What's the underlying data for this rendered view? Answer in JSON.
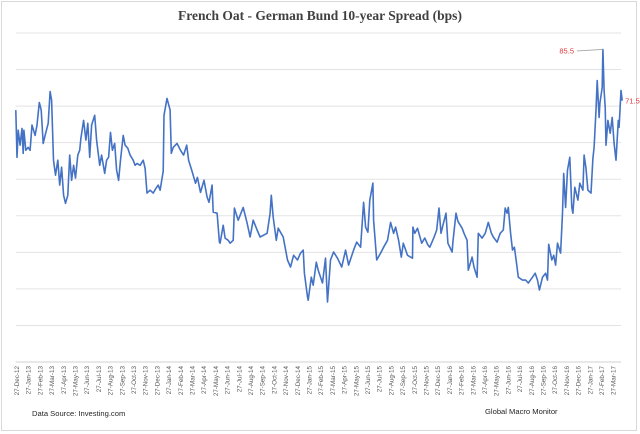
{
  "chart_data": {
    "type": "line",
    "title": "French Oat - German Bund 10-year Spread (bps)",
    "xlabel": "",
    "ylabel": "",
    "ylim": [
      0,
      90
    ],
    "y_gridlines": [
      0,
      10,
      20,
      30,
      40,
      50,
      60,
      70,
      80,
      90
    ],
    "y_tick_labels_shown": false,
    "grid": true,
    "legend": "none",
    "line_color": "#4472c4",
    "annotation_color": "#e0393e",
    "x_tick_labels": [
      "27-Dec-12",
      "27-Jan-13",
      "27-Feb-13",
      "27-Mar-13",
      "27-Apr-13",
      "27-May-13",
      "27-Jun-13",
      "27-Jul-13",
      "27-Aug-13",
      "27-Sep-13",
      "27-Oct-13",
      "27-Nov-13",
      "27-Dec-13",
      "27-Jan-14",
      "27-Feb-14",
      "27-Mar-14",
      "27-Apr-14",
      "27-May-14",
      "27-Jun-14",
      "27-Jul-14",
      "27-Aug-14",
      "27-Sep-14",
      "27-Oct-14",
      "27-Nov-14",
      "27-Dec-14",
      "27-Jan-15",
      "27-Feb-15",
      "27-Mar-15",
      "27-Apr-15",
      "27-May-15",
      "27-Jun-15",
      "27-Jul-15",
      "27-Aug-15",
      "27-Sep-15",
      "27-Oct-15",
      "27-Nov-15",
      "27-Dec-15",
      "27-Jan-16",
      "27-Feb-16",
      "27-Mar-16",
      "27-Apr-16",
      "27-May-16",
      "27-Jun-16",
      "27-Jul-16",
      "27-Aug-16",
      "27-Sep-16",
      "27-Oct-16",
      "27-Nov-16",
      "27-Dec-16",
      "27-Jan-17",
      "27-Feb-17",
      "27-Mar-17"
    ],
    "annotations": [
      {
        "label": "85.5",
        "date": "2017-02-27",
        "value": 85.5
      },
      {
        "label": "71.5",
        "date": "2017-04-18",
        "value": 71.5
      }
    ],
    "series": [
      {
        "points": [
          [
            "2012-12-24",
            68.9
          ],
          [
            "2012-12-27",
            56
          ],
          [
            "2012-12-30",
            63.4
          ],
          [
            "2013-01-04",
            59.3
          ],
          [
            "2013-01-09",
            63.9
          ],
          [
            "2013-01-12",
            57.1
          ],
          [
            "2013-01-14",
            63.4
          ],
          [
            "2013-01-19",
            57.9
          ],
          [
            "2013-01-25",
            58.7
          ],
          [
            "2013-01-30",
            57.9
          ],
          [
            "2013-02-04",
            64.8
          ],
          [
            "2013-02-12",
            62
          ],
          [
            "2013-02-17",
            64.8
          ],
          [
            "2013-02-23",
            71
          ],
          [
            "2013-02-28",
            68.9
          ],
          [
            "2013-03-05",
            59.8
          ],
          [
            "2013-03-10",
            62
          ],
          [
            "2013-03-18",
            65.3
          ],
          [
            "2013-03-23",
            74
          ],
          [
            "2013-03-27",
            71.6
          ],
          [
            "2013-04-01",
            55.2
          ],
          [
            "2013-04-06",
            51.1
          ],
          [
            "2013-04-12",
            55.2
          ],
          [
            "2013-04-17",
            48.4
          ],
          [
            "2013-04-22",
            53.3
          ],
          [
            "2013-04-27",
            45.6
          ],
          [
            "2013-05-02",
            43.4
          ],
          [
            "2013-05-08",
            45.6
          ],
          [
            "2013-05-13",
            56.6
          ],
          [
            "2013-05-18",
            49.7
          ],
          [
            "2013-05-23",
            53.8
          ],
          [
            "2013-05-28",
            50.3
          ],
          [
            "2013-06-03",
            56.6
          ],
          [
            "2013-06-08",
            57.9
          ],
          [
            "2013-06-11",
            61.2
          ],
          [
            "2013-06-18",
            66.1
          ],
          [
            "2013-06-24",
            60.7
          ],
          [
            "2013-06-29",
            65.3
          ],
          [
            "2013-07-04",
            56
          ],
          [
            "2013-07-09",
            64.8
          ],
          [
            "2013-07-17",
            67.5
          ],
          [
            "2013-07-22",
            60.7
          ],
          [
            "2013-07-30",
            53.8
          ],
          [
            "2013-08-04",
            56.6
          ],
          [
            "2013-08-12",
            51.6
          ],
          [
            "2013-08-17",
            55.2
          ],
          [
            "2013-08-22",
            56
          ],
          [
            "2013-08-27",
            62.8
          ],
          [
            "2013-09-01",
            57.9
          ],
          [
            "2013-09-07",
            59.8
          ],
          [
            "2013-09-12",
            52.5
          ],
          [
            "2013-09-17",
            49.7
          ],
          [
            "2013-09-22",
            55.2
          ],
          [
            "2013-09-29",
            62
          ],
          [
            "2013-10-04",
            59.3
          ],
          [
            "2013-10-11",
            58.5
          ],
          [
            "2013-10-17",
            56.6
          ],
          [
            "2013-10-25",
            55.2
          ],
          [
            "2013-10-30",
            53.8
          ],
          [
            "2013-11-04",
            54.3
          ],
          [
            "2013-11-12",
            53.8
          ],
          [
            "2013-11-20",
            55.2
          ],
          [
            "2013-11-25",
            53
          ],
          [
            "2013-11-30",
            46.2
          ],
          [
            "2013-12-08",
            47
          ],
          [
            "2013-12-16",
            46.2
          ],
          [
            "2013-12-23",
            47.5
          ],
          [
            "2013-12-29",
            48.4
          ],
          [
            "2014-01-03",
            47
          ],
          [
            "2014-01-11",
            52.2
          ],
          [
            "2014-01-13",
            67.5
          ],
          [
            "2014-01-21",
            72.1
          ],
          [
            "2014-01-29",
            68.9
          ],
          [
            "2014-02-01",
            57.1
          ],
          [
            "2014-02-06",
            58.7
          ],
          [
            "2014-02-16",
            59.8
          ],
          [
            "2014-02-25",
            57.9
          ],
          [
            "2014-03-05",
            56.6
          ],
          [
            "2014-03-13",
            59.3
          ],
          [
            "2014-03-18",
            55.2
          ],
          [
            "2014-03-26",
            52.5
          ],
          [
            "2014-04-05",
            48.9
          ],
          [
            "2014-04-10",
            50.5
          ],
          [
            "2014-04-18",
            46.4
          ],
          [
            "2014-04-27",
            49.7
          ],
          [
            "2014-05-05",
            45.1
          ],
          [
            "2014-05-10",
            43.7
          ],
          [
            "2014-05-18",
            48.4
          ],
          [
            "2014-05-21",
            41
          ],
          [
            "2014-05-31",
            40.7
          ],
          [
            "2014-06-06",
            32.8
          ],
          [
            "2014-06-08",
            32.5
          ],
          [
            "2014-06-16",
            37.4
          ],
          [
            "2014-06-21",
            33.9
          ],
          [
            "2014-06-29",
            33.3
          ],
          [
            "2014-07-04",
            32.5
          ],
          [
            "2014-07-12",
            33.3
          ],
          [
            "2014-07-15",
            42.1
          ],
          [
            "2014-07-25",
            38.8
          ],
          [
            "2014-08-07",
            42.3
          ],
          [
            "2014-08-17",
            38
          ],
          [
            "2014-08-25",
            34.2
          ],
          [
            "2014-09-02",
            38.8
          ],
          [
            "2014-09-12",
            36.1
          ],
          [
            "2014-09-20",
            34.2
          ],
          [
            "2014-10-08",
            35.2
          ],
          [
            "2014-10-16",
            40.7
          ],
          [
            "2014-10-19",
            45.6
          ],
          [
            "2014-10-24",
            39.6
          ],
          [
            "2014-11-01",
            33.3
          ],
          [
            "2014-11-06",
            36.6
          ],
          [
            "2014-11-19",
            34.2
          ],
          [
            "2014-11-30",
            27.9
          ],
          [
            "2014-12-08",
            26
          ],
          [
            "2014-12-16",
            29.2
          ],
          [
            "2014-12-26",
            27.9
          ],
          [
            "2015-01-03",
            29.8
          ],
          [
            "2015-01-10",
            30.6
          ],
          [
            "2015-01-13",
            24.3
          ],
          [
            "2015-01-21",
            17.8
          ],
          [
            "2015-01-23",
            16.9
          ],
          [
            "2015-01-31",
            23.2
          ],
          [
            "2015-02-05",
            21
          ],
          [
            "2015-02-13",
            27.3
          ],
          [
            "2015-02-18",
            25.1
          ],
          [
            "2015-03-01",
            21.6
          ],
          [
            "2015-03-09",
            28.4
          ],
          [
            "2015-03-14",
            16.4
          ],
          [
            "2015-03-22",
            27.9
          ],
          [
            "2015-03-30",
            30.1
          ],
          [
            "2015-04-09",
            28.4
          ],
          [
            "2015-04-20",
            26
          ],
          [
            "2015-04-30",
            30.6
          ],
          [
            "2015-05-08",
            26.5
          ],
          [
            "2015-05-21",
            30.6
          ],
          [
            "2015-05-29",
            32.8
          ],
          [
            "2015-06-08",
            31.4
          ],
          [
            "2015-06-16",
            43.7
          ],
          [
            "2015-06-21",
            36.9
          ],
          [
            "2015-06-27",
            35.5
          ],
          [
            "2015-07-02",
            44.3
          ],
          [
            "2015-07-10",
            48.9
          ],
          [
            "2015-07-12",
            38.8
          ],
          [
            "2015-07-20",
            27.9
          ],
          [
            "2015-07-30",
            29.8
          ],
          [
            "2015-08-07",
            31.4
          ],
          [
            "2015-08-17",
            33.3
          ],
          [
            "2015-08-25",
            38.2
          ],
          [
            "2015-09-02",
            35.2
          ],
          [
            "2015-09-07",
            36.9
          ],
          [
            "2015-09-15",
            33.3
          ],
          [
            "2015-09-22",
            28.7
          ],
          [
            "2015-09-27",
            32.5
          ],
          [
            "2015-10-08",
            29.2
          ],
          [
            "2015-10-21",
            28.4
          ],
          [
            "2015-10-22",
            36.9
          ],
          [
            "2015-10-27",
            35.2
          ],
          [
            "2015-11-03",
            36.6
          ],
          [
            "2015-11-14",
            32.5
          ],
          [
            "2015-11-22",
            33.9
          ],
          [
            "2015-11-30",
            32
          ],
          [
            "2015-12-05",
            31.4
          ],
          [
            "2015-12-15",
            33.9
          ],
          [
            "2015-12-23",
            36.1
          ],
          [
            "2015-12-29",
            42.1
          ],
          [
            "2016-01-03",
            35.2
          ],
          [
            "2016-01-08",
            37.4
          ],
          [
            "2016-01-16",
            40.7
          ],
          [
            "2016-01-21",
            32.5
          ],
          [
            "2016-02-01",
            30.1
          ],
          [
            "2016-02-03",
            32.8
          ],
          [
            "2016-02-11",
            40.7
          ],
          [
            "2016-02-16",
            38.5
          ],
          [
            "2016-02-27",
            36.6
          ],
          [
            "2016-03-03",
            35.2
          ],
          [
            "2016-03-11",
            33.3
          ],
          [
            "2016-03-14",
            25.1
          ],
          [
            "2016-03-24",
            28.7
          ],
          [
            "2016-03-29",
            26
          ],
          [
            "2016-04-06",
            23.2
          ],
          [
            "2016-04-09",
            35.2
          ],
          [
            "2016-04-19",
            33.9
          ],
          [
            "2016-04-27",
            35.2
          ],
          [
            "2016-05-05",
            38.2
          ],
          [
            "2016-05-13",
            35.2
          ],
          [
            "2016-05-18",
            34.2
          ],
          [
            "2016-05-28",
            32.8
          ],
          [
            "2016-06-05",
            35.2
          ],
          [
            "2016-06-13",
            36.1
          ],
          [
            "2016-06-18",
            42.1
          ],
          [
            "2016-06-23",
            40.7
          ],
          [
            "2016-06-26",
            42.3
          ],
          [
            "2016-07-02",
            35.2
          ],
          [
            "2016-07-07",
            30.6
          ],
          [
            "2016-07-12",
            31.4
          ],
          [
            "2016-07-17",
            27.3
          ],
          [
            "2016-07-22",
            23.2
          ],
          [
            "2016-08-02",
            22.4
          ],
          [
            "2016-08-10",
            22.4
          ],
          [
            "2016-08-17",
            21.6
          ],
          [
            "2016-08-28",
            23.2
          ],
          [
            "2016-09-04",
            24.3
          ],
          [
            "2016-09-10",
            22.4
          ],
          [
            "2016-09-15",
            19.7
          ],
          [
            "2016-09-23",
            23.2
          ],
          [
            "2016-10-01",
            24.3
          ],
          [
            "2016-10-06",
            22.4
          ],
          [
            "2016-10-09",
            32.2
          ],
          [
            "2016-10-17",
            27.9
          ],
          [
            "2016-10-22",
            29.2
          ],
          [
            "2016-10-27",
            26.5
          ],
          [
            "2016-11-01",
            32.5
          ],
          [
            "2016-11-09",
            29.8
          ],
          [
            "2016-11-14",
            40.7
          ],
          [
            "2016-11-17",
            51.6
          ],
          [
            "2016-11-22",
            42.3
          ],
          [
            "2016-11-27",
            52.5
          ],
          [
            "2016-12-03",
            56
          ],
          [
            "2016-12-08",
            42.3
          ],
          [
            "2016-12-11",
            40.7
          ],
          [
            "2016-12-16",
            47.8
          ],
          [
            "2016-12-24",
            44.3
          ],
          [
            "2016-12-29",
            48.9
          ],
          [
            "2017-01-06",
            47
          ],
          [
            "2017-01-09",
            56.6
          ],
          [
            "2017-01-14",
            53
          ],
          [
            "2017-01-19",
            47
          ],
          [
            "2017-01-27",
            46.2
          ],
          [
            "2017-02-01",
            55.7
          ],
          [
            "2017-02-04",
            58.7
          ],
          [
            "2017-02-09",
            68.9
          ],
          [
            "2017-02-12",
            77
          ],
          [
            "2017-02-17",
            66.9
          ],
          [
            "2017-02-19",
            70.8
          ],
          [
            "2017-02-25",
            75.1
          ],
          [
            "2017-02-27",
            85.5
          ],
          [
            "2017-03-02",
            74.3
          ],
          [
            "2017-03-05",
            69.7
          ],
          [
            "2017-03-07",
            59.3
          ],
          [
            "2017-03-12",
            66.1
          ],
          [
            "2017-03-18",
            62.6
          ],
          [
            "2017-03-23",
            66.9
          ],
          [
            "2017-03-28",
            59.8
          ],
          [
            "2017-04-02",
            55.2
          ],
          [
            "2017-04-08",
            66.1
          ],
          [
            "2017-04-10",
            64.2
          ],
          [
            "2017-04-15",
            74.3
          ],
          [
            "2017-04-18",
            71.5
          ]
        ]
      }
    ]
  },
  "footer": {
    "source": "Data Source:  Investing.com",
    "credit": "Global Macro Monitor"
  }
}
